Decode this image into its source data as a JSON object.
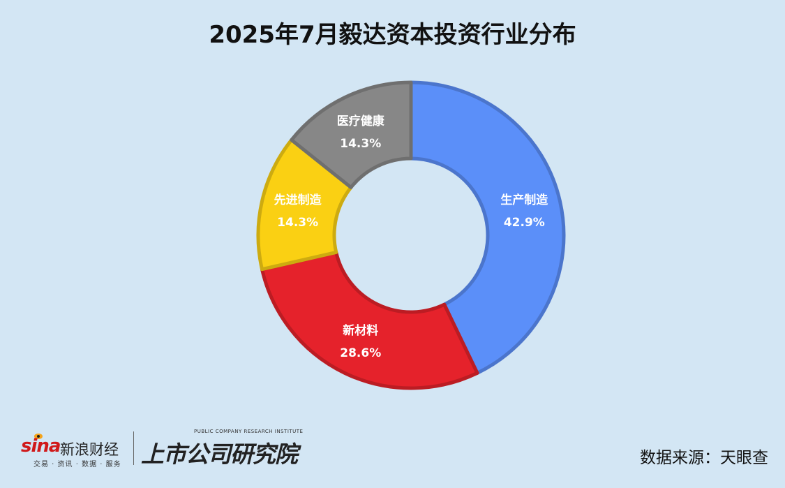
{
  "chart_data": {
    "type": "pie",
    "title": "2025年7月毅达资本投资行业分布",
    "categories": [
      "生产制造",
      "新材料",
      "先进制造",
      "医疗健康"
    ],
    "values": [
      42.9,
      28.6,
      14.3,
      14.3
    ],
    "value_labels": [
      "42.9%",
      "28.6%",
      "14.3%",
      "14.3%"
    ],
    "colors": [
      "#5b8ff9",
      "#e5222b",
      "#fad013",
      "#878787"
    ],
    "donut": true
  },
  "footer": {
    "sina_brand": "sina",
    "sina_name": "新浪财经",
    "sina_tagline": "交易 · 资讯 · 数据 · 服务",
    "institute_en": "PUBLIC COMPANY RESEARCH INSTITUTE",
    "institute_cn": "上市公司研究院",
    "source": "数据来源：天眼查"
  }
}
